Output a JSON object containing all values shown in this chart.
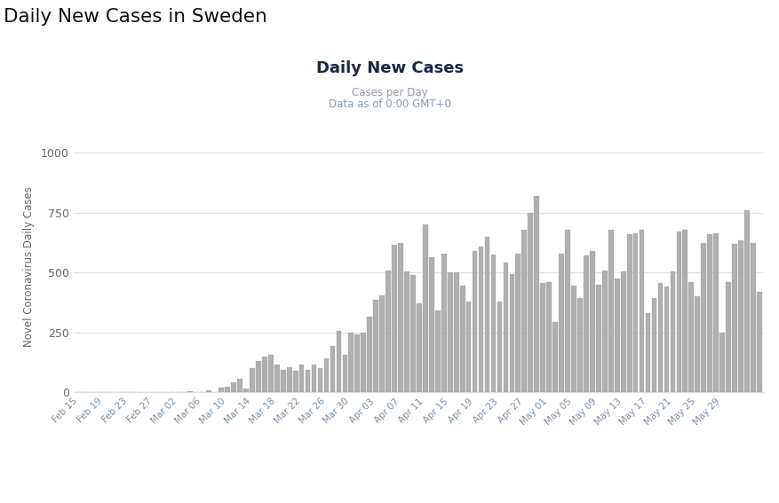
{
  "page_title": "Daily New Cases in Sweden",
  "chart_title": "Daily New Cases",
  "subtitle_line1": "Cases per Day",
  "subtitle_line2": "Data as of 0:00 GMT+0",
  "ylabel": "Novel Coronavirus Daily Cases",
  "bar_color": "#b0b0b0",
  "bar_edge_color": "#a0a0a0",
  "background_color": "#ffffff",
  "bottom_background": "#f0f0f0",
  "grid_color": "#e0e0e0",
  "title_color": "#1a2744",
  "subtitle_color": "#8a9bb0",
  "page_title_color": "#111111",
  "ytick_color": "#666666",
  "xtick_color": "#7a8fa8",
  "ylim": [
    0,
    1050
  ],
  "yticks": [
    0,
    250,
    500,
    750,
    1000
  ],
  "daily_values": [
    0,
    0,
    0,
    0,
    0,
    0,
    0,
    0,
    0,
    0,
    0,
    0,
    0,
    0,
    0,
    0,
    0,
    0,
    5,
    0,
    0,
    10,
    0,
    20,
    25,
    40,
    55,
    15,
    100,
    130,
    150,
    155,
    115,
    95,
    105,
    90,
    115,
    95,
    115,
    100,
    140,
    195,
    255,
    155,
    250,
    240,
    250,
    315,
    385,
    405,
    510,
    615,
    625,
    505,
    490,
    370,
    700,
    565,
    340,
    580,
    500,
    500,
    445,
    380,
    590,
    610,
    650,
    575,
    380,
    540,
    495,
    580,
    680,
    750,
    820,
    455,
    460,
    295,
    580,
    680,
    445,
    395,
    570,
    590,
    450,
    510,
    680,
    475,
    505,
    660,
    665,
    680,
    330,
    395,
    455,
    440,
    505,
    670,
    680,
    460,
    400,
    625,
    660,
    665,
    250,
    460,
    620,
    635,
    760,
    625,
    420
  ],
  "xtick_labels": [
    "Feb 15",
    "Feb 19",
    "Feb 23",
    "Feb 27",
    "Mar 02",
    "Mar 06",
    "Mar 10",
    "Mar 14",
    "Mar 18",
    "Mar 22",
    "Mar 26",
    "Mar 30",
    "Apr 03",
    "Apr 07",
    "Apr 11",
    "Apr 15",
    "Apr 19",
    "Apr 23",
    "Apr 27",
    "May 01",
    "May 05",
    "May 09",
    "May 13",
    "May 17",
    "May 21",
    "May 25",
    "May 29"
  ]
}
